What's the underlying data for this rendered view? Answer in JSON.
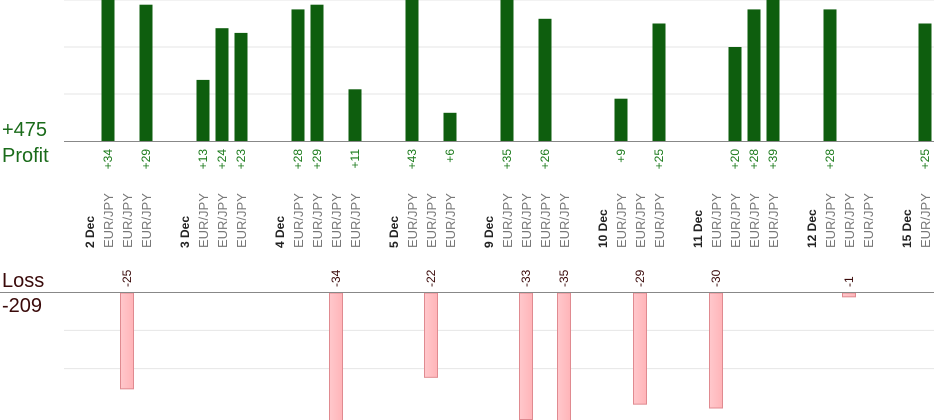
{
  "summary": {
    "profit_value": "+475",
    "profit_label": "Profit",
    "loss_label": "Loss",
    "loss_value": "-209"
  },
  "colors": {
    "profit_bar": "#0e5e0e",
    "profit_text": "#1a7a1a",
    "loss_bar": "#ffb4b8",
    "loss_bar_edge": "#e08a90",
    "loss_text": "#3a0a0a",
    "axis": "#888888",
    "grid": "#e6e6e6",
    "date_text": "#222222",
    "pair_text": "#777777"
  },
  "chart_data": {
    "type": "bar",
    "title": "",
    "xlabel": "",
    "ylabel": "",
    "ylim_profit": [
      0,
      30
    ],
    "ylim_loss": [
      -30,
      0
    ],
    "grid": true,
    "profit_total": 475,
    "loss_total": -209,
    "columns": [
      {
        "label": "2 Dec",
        "type": "date"
      },
      {
        "label": "EUR/JPY",
        "type": "trade",
        "value": 34
      },
      {
        "label": "EUR/JPY",
        "type": "trade",
        "value": -25
      },
      {
        "label": "EUR/JPY",
        "type": "trade",
        "value": 29
      },
      {
        "label": "",
        "type": "gap"
      },
      {
        "label": "3 Dec",
        "type": "date"
      },
      {
        "label": "EUR/JPY",
        "type": "trade",
        "value": 13
      },
      {
        "label": "EUR/JPY",
        "type": "trade",
        "value": 24
      },
      {
        "label": "EUR/JPY",
        "type": "trade",
        "value": 23
      },
      {
        "label": "",
        "type": "gap"
      },
      {
        "label": "4 Dec",
        "type": "date"
      },
      {
        "label": "EUR/JPY",
        "type": "trade",
        "value": 28
      },
      {
        "label": "EUR/JPY",
        "type": "trade",
        "value": 29
      },
      {
        "label": "EUR/JPY",
        "type": "trade",
        "value": -34
      },
      {
        "label": "EUR/JPY",
        "type": "trade",
        "value": 11
      },
      {
        "label": "",
        "type": "gap"
      },
      {
        "label": "5 Dec",
        "type": "date"
      },
      {
        "label": "EUR/JPY",
        "type": "trade",
        "value": 43
      },
      {
        "label": "EUR/JPY",
        "type": "trade",
        "value": -22
      },
      {
        "label": "EUR/JPY",
        "type": "trade",
        "value": 6
      },
      {
        "label": "",
        "type": "gap"
      },
      {
        "label": "9 Dec",
        "type": "date"
      },
      {
        "label": "EUR/JPY",
        "type": "trade",
        "value": 35
      },
      {
        "label": "EUR/JPY",
        "type": "trade",
        "value": -33
      },
      {
        "label": "EUR/JPY",
        "type": "trade",
        "value": 26
      },
      {
        "label": "EUR/JPY",
        "type": "trade",
        "value": -35
      },
      {
        "label": "",
        "type": "gap"
      },
      {
        "label": "10 Dec",
        "type": "date"
      },
      {
        "label": "EUR/JPY",
        "type": "trade",
        "value": 9
      },
      {
        "label": "EUR/JPY",
        "type": "trade",
        "value": -29
      },
      {
        "label": "EUR/JPY",
        "type": "trade",
        "value": 25
      },
      {
        "label": "",
        "type": "gap"
      },
      {
        "label": "11 Dec",
        "type": "date"
      },
      {
        "label": "EUR/JPY",
        "type": "trade",
        "value": -30
      },
      {
        "label": "EUR/JPY",
        "type": "trade",
        "value": 20
      },
      {
        "label": "EUR/JPY",
        "type": "trade",
        "value": 28
      },
      {
        "label": "EUR/JPY",
        "type": "trade",
        "value": 39
      },
      {
        "label": "",
        "type": "gap"
      },
      {
        "label": "12 Dec",
        "type": "date"
      },
      {
        "label": "EUR/JPY",
        "type": "trade",
        "value": 28
      },
      {
        "label": "EUR/JPY",
        "type": "trade",
        "value": -1
      },
      {
        "label": "EUR/JPY",
        "type": "trade",
        "value": null
      },
      {
        "label": "",
        "type": "gap"
      },
      {
        "label": "15 Dec",
        "type": "date"
      },
      {
        "label": "EUR/JPY",
        "type": "trade",
        "value": 25
      }
    ]
  }
}
